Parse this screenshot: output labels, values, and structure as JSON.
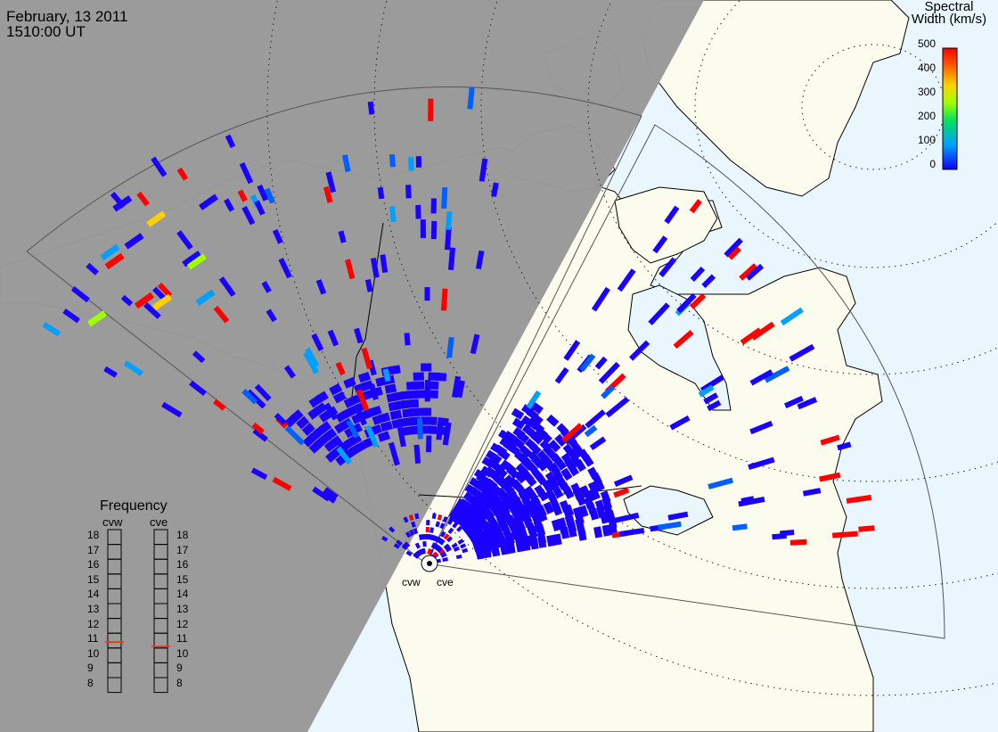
{
  "header": {
    "date": "February, 13 2011",
    "time": "1510:00 UT"
  },
  "colorbar": {
    "title_line1": "Spectral",
    "title_line2": "Width (km/s)",
    "ticks": [
      "500",
      "400",
      "300",
      "200",
      "100",
      "0"
    ],
    "range": [
      0,
      500
    ]
  },
  "frequency": {
    "title": "Frequency",
    "radars": [
      "cvw",
      "cve"
    ],
    "scale": [
      "18",
      "17",
      "16",
      "15",
      "14",
      "13",
      "12",
      "11",
      "10",
      "9",
      "8"
    ],
    "unit_range": [
      8,
      18
    ],
    "cvw_value": 10.9,
    "cve_value": 10.6
  },
  "radar_labels": {
    "west": "cvw",
    "east": "cve"
  },
  "colors": {
    "night_shade": "#999999",
    "ocean_day": "#eaf6fd",
    "land_day": "#fcfcee",
    "coast": "#000000",
    "fov_outline": "#555555",
    "grid_dot": "#222222",
    "freq_marker": "#e54010"
  },
  "map_features": [
    "nightside-terminator",
    "coastlines",
    "field-of-view-cvw",
    "field-of-view-cve",
    "magnetic-latitude-grid",
    "radar-site-icon"
  ]
}
